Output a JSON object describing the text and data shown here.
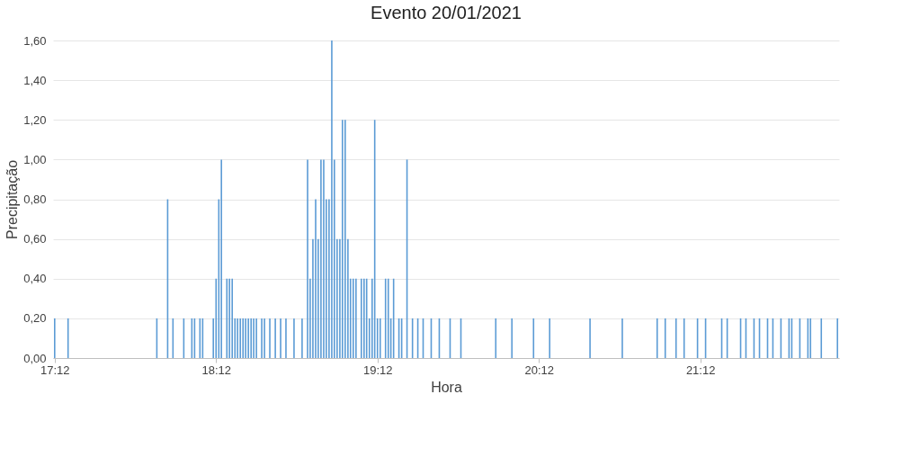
{
  "chart_data": {
    "type": "bar",
    "title": "Evento 20/01/2021",
    "xlabel": "Hora",
    "ylabel": "Precipitação",
    "x": [
      17.2,
      17.283,
      17.833,
      17.9,
      17.933,
      18.0,
      18.05,
      18.067,
      18.1,
      18.117,
      18.183,
      18.2,
      18.217,
      18.233,
      18.267,
      18.283,
      18.3,
      18.317,
      18.333,
      18.35,
      18.367,
      18.383,
      18.4,
      18.417,
      18.433,
      18.45,
      18.483,
      18.5,
      18.533,
      18.567,
      18.6,
      18.633,
      18.683,
      18.733,
      18.767,
      18.783,
      18.8,
      18.817,
      18.833,
      18.85,
      18.867,
      18.883,
      18.9,
      18.917,
      18.933,
      18.95,
      18.967,
      18.983,
      19.0,
      19.017,
      19.033,
      19.05,
      19.067,
      19.1,
      19.117,
      19.133,
      19.15,
      19.167,
      19.183,
      19.2,
      19.217,
      19.25,
      19.267,
      19.283,
      19.3,
      19.333,
      19.35,
      19.383,
      19.417,
      19.45,
      19.483,
      19.533,
      19.583,
      19.65,
      19.717,
      19.933,
      20.033,
      20.167,
      20.267,
      20.517,
      20.717,
      20.933,
      20.983,
      21.05,
      21.1,
      21.183,
      21.233,
      21.333,
      21.367,
      21.45,
      21.483,
      21.533,
      21.567,
      21.617,
      21.65,
      21.7,
      21.75,
      21.767,
      21.817,
      21.867,
      21.883,
      21.95,
      22.05
    ],
    "series": [
      {
        "color": "#5b9bd5",
        "values": [
          0.2,
          0.2,
          0.2,
          0.8,
          0.2,
          0.2,
          0.2,
          0.2,
          0.2,
          0.2,
          0.2,
          0.4,
          0.8,
          1.0,
          0.4,
          0.4,
          0.4,
          0.2,
          0.2,
          0.2,
          0.2,
          0.2,
          0.2,
          0.2,
          0.2,
          0.2,
          0.2,
          0.2,
          0.2,
          0.2,
          0.2,
          0.2,
          0.2,
          0.2,
          1.0,
          0.4,
          0.6,
          0.8,
          0.6,
          1.0,
          1.0,
          0.8,
          0.8,
          1.6,
          1.0,
          0.6,
          0.6,
          1.2,
          1.2,
          0.6,
          0.4,
          0.4,
          0.4,
          0.4,
          0.4,
          0.4,
          0.2,
          0.4,
          1.2,
          0.2,
          0.2,
          0.4,
          0.4,
          0.2,
          0.4,
          0.2,
          0.2,
          1.0,
          0.2,
          0.2,
          0.2,
          0.2,
          0.2,
          0.2,
          0.2,
          0.2,
          0.2,
          0.2,
          0.2,
          0.2,
          0.2,
          0.2,
          0.2,
          0.2,
          0.2,
          0.2,
          0.2,
          0.2,
          0.2,
          0.2,
          0.2,
          0.2,
          0.2,
          0.2,
          0.2,
          0.2,
          0.2,
          0.2,
          0.2,
          0.2,
          0.2,
          0.2,
          0.2
        ]
      }
    ],
    "xlim": [
      17.19,
      22.06
    ],
    "xticks": [
      {
        "value": 17.2,
        "label": "17:12"
      },
      {
        "value": 18.2,
        "label": "18:12"
      },
      {
        "value": 19.2,
        "label": "19:12"
      },
      {
        "value": 20.2,
        "label": "20:12"
      },
      {
        "value": 21.2,
        "label": "21:12"
      }
    ],
    "ylim": [
      0,
      1.6
    ],
    "yticks": [
      {
        "value": 0,
        "label": "0,00"
      },
      {
        "value": 0.2,
        "label": "0,20"
      },
      {
        "value": 0.4,
        "label": "0,40"
      },
      {
        "value": 0.6,
        "label": "0,60"
      },
      {
        "value": 0.8,
        "label": "0,80"
      },
      {
        "value": 1.0,
        "label": "1,00"
      },
      {
        "value": 1.2,
        "label": "1,20"
      },
      {
        "value": 1.4,
        "label": "1,40"
      },
      {
        "value": 1.6,
        "label": "1,60"
      }
    ],
    "grid": "y"
  }
}
